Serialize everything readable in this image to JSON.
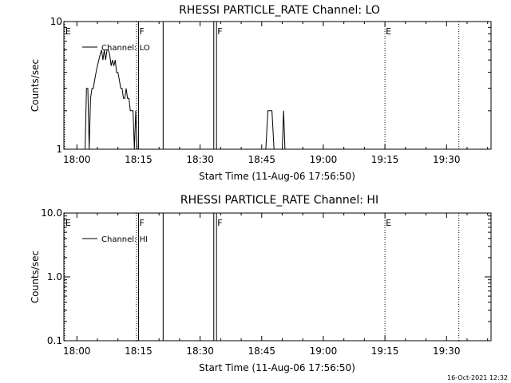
{
  "footer": "16-Oct-2021 12:32",
  "chart_data": [
    {
      "type": "line",
      "title": "RHESSI PARTICLE_RATE Channel: LO",
      "xlabel": "Start Time (11-Aug-06 17:56:50)",
      "ylabel": "Counts/sec",
      "y_scale": "log",
      "ylim": [
        1,
        10
      ],
      "y_ticks": [
        "1",
        "10"
      ],
      "x_ticks": [
        "18:00",
        "18:15",
        "18:30",
        "18:45",
        "19:00",
        "19:15",
        "19:30"
      ],
      "legend": {
        "label": "Channel: LO",
        "placement": "top-left"
      },
      "markers": [
        {
          "label": "E",
          "time": "17:57"
        },
        {
          "label": "F",
          "time": "18:15"
        },
        {
          "label": "F",
          "time": "18:34"
        },
        {
          "label": "E",
          "time": "19:15"
        }
      ],
      "series": [
        {
          "name": "Channel: LO",
          "points": [
            [
              "18:02:00",
              1
            ],
            [
              "18:02:20",
              3
            ],
            [
              "18:02:40",
              3
            ],
            [
              "18:03:00",
              1
            ],
            [
              "18:03:20",
              2.5
            ],
            [
              "18:03:40",
              3
            ],
            [
              "18:04:00",
              3
            ],
            [
              "18:04:20",
              3.5
            ],
            [
              "18:04:40",
              4
            ],
            [
              "18:05:00",
              4.5
            ],
            [
              "18:05:20",
              5
            ],
            [
              "18:05:40",
              5.5
            ],
            [
              "18:06:00",
              6
            ],
            [
              "18:06:20",
              5
            ],
            [
              "18:06:40",
              6
            ],
            [
              "18:07:00",
              5
            ],
            [
              "18:07:20",
              6
            ],
            [
              "18:07:40",
              6
            ],
            [
              "18:08:00",
              5.5
            ],
            [
              "18:08:20",
              4.5
            ],
            [
              "18:08:40",
              5
            ],
            [
              "18:09:00",
              4.5
            ],
            [
              "18:09:20",
              5
            ],
            [
              "18:09:40",
              4
            ],
            [
              "18:10:00",
              4
            ],
            [
              "18:10:20",
              3.5
            ],
            [
              "18:10:40",
              3
            ],
            [
              "18:11:00",
              3
            ],
            [
              "18:11:20",
              2.5
            ],
            [
              "18:11:40",
              2.5
            ],
            [
              "18:12:00",
              3
            ],
            [
              "18:12:20",
              2.5
            ],
            [
              "18:12:40",
              2.5
            ],
            [
              "18:13:00",
              2
            ],
            [
              "18:13:20",
              2
            ],
            [
              "18:13:40",
              2
            ],
            [
              "18:14:00",
              1
            ],
            [
              "18:14:20",
              2
            ],
            [
              "18:14:40",
              1
            ],
            [
              "18:46:00",
              1
            ],
            [
              "18:46:30",
              2
            ],
            [
              "18:47:30",
              2
            ],
            [
              "18:48:00",
              1
            ],
            [
              "18:50:00",
              1
            ],
            [
              "18:50:20",
              2
            ],
            [
              "18:50:40",
              1
            ]
          ]
        }
      ]
    },
    {
      "type": "line",
      "title": "RHESSI PARTICLE_RATE Channel: HI",
      "xlabel": "Start Time (11-Aug-06 17:56:50)",
      "ylabel": "Counts/sec",
      "y_scale": "log",
      "ylim": [
        0.1,
        10
      ],
      "y_ticks": [
        "0.1",
        "1.0",
        "10.0"
      ],
      "x_ticks": [
        "18:00",
        "18:15",
        "18:30",
        "18:45",
        "19:00",
        "19:15",
        "19:30"
      ],
      "legend": {
        "label": "Channel: HI",
        "placement": "top-left"
      },
      "markers": [
        {
          "label": "E",
          "time": "17:57"
        },
        {
          "label": "F",
          "time": "18:15"
        },
        {
          "label": "F",
          "time": "18:34"
        },
        {
          "label": "E",
          "time": "19:15"
        }
      ],
      "series": [
        {
          "name": "Channel: HI",
          "points": []
        }
      ]
    }
  ]
}
